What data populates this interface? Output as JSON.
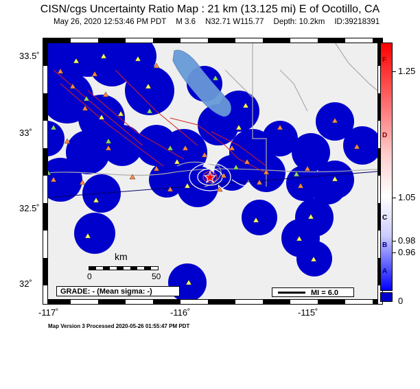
{
  "header": {
    "title": "CISN/cgs Uncertainty Ratio Map : 21 km (13.125 mi) E of Ocotillo, CA",
    "datetime": "May 26, 2020 12:53:46 PM PDT",
    "magnitude": "M 3.6",
    "location": "N32.71 W115.77",
    "depth": "Depth: 10.2km",
    "event_id": "ID:39218391"
  },
  "axes": {
    "y_labels": [
      "33.5˚",
      "33˚",
      "32.5˚",
      "32˚"
    ],
    "x_labels": [
      "-117˚",
      "-116˚",
      "-115˚"
    ]
  },
  "colorbar": {
    "grades": [
      "F",
      "D",
      "C",
      "B",
      "A"
    ],
    "values": [
      "1.25",
      "1.05",
      "0.98",
      "0.96",
      "0"
    ]
  },
  "scale": {
    "unit": "km",
    "left": "0",
    "right": "50"
  },
  "grade_box": "GRADE: - (Mean sigma: -)",
  "mi_box": "MI = 6.0",
  "footer": "Map Version 3 Processed 2020-05-26 01:55:47 PM PDT",
  "colors": {
    "land": "#efefef",
    "water": "#6e9fd8",
    "station_circle": "#0000cc",
    "fault": "#d42020",
    "road": "#aaaaaa",
    "station_triangle": "#ffff66",
    "seismic_station": "#ff8844",
    "green_station": "#88dd66",
    "epicenter": "#ff0000"
  }
}
